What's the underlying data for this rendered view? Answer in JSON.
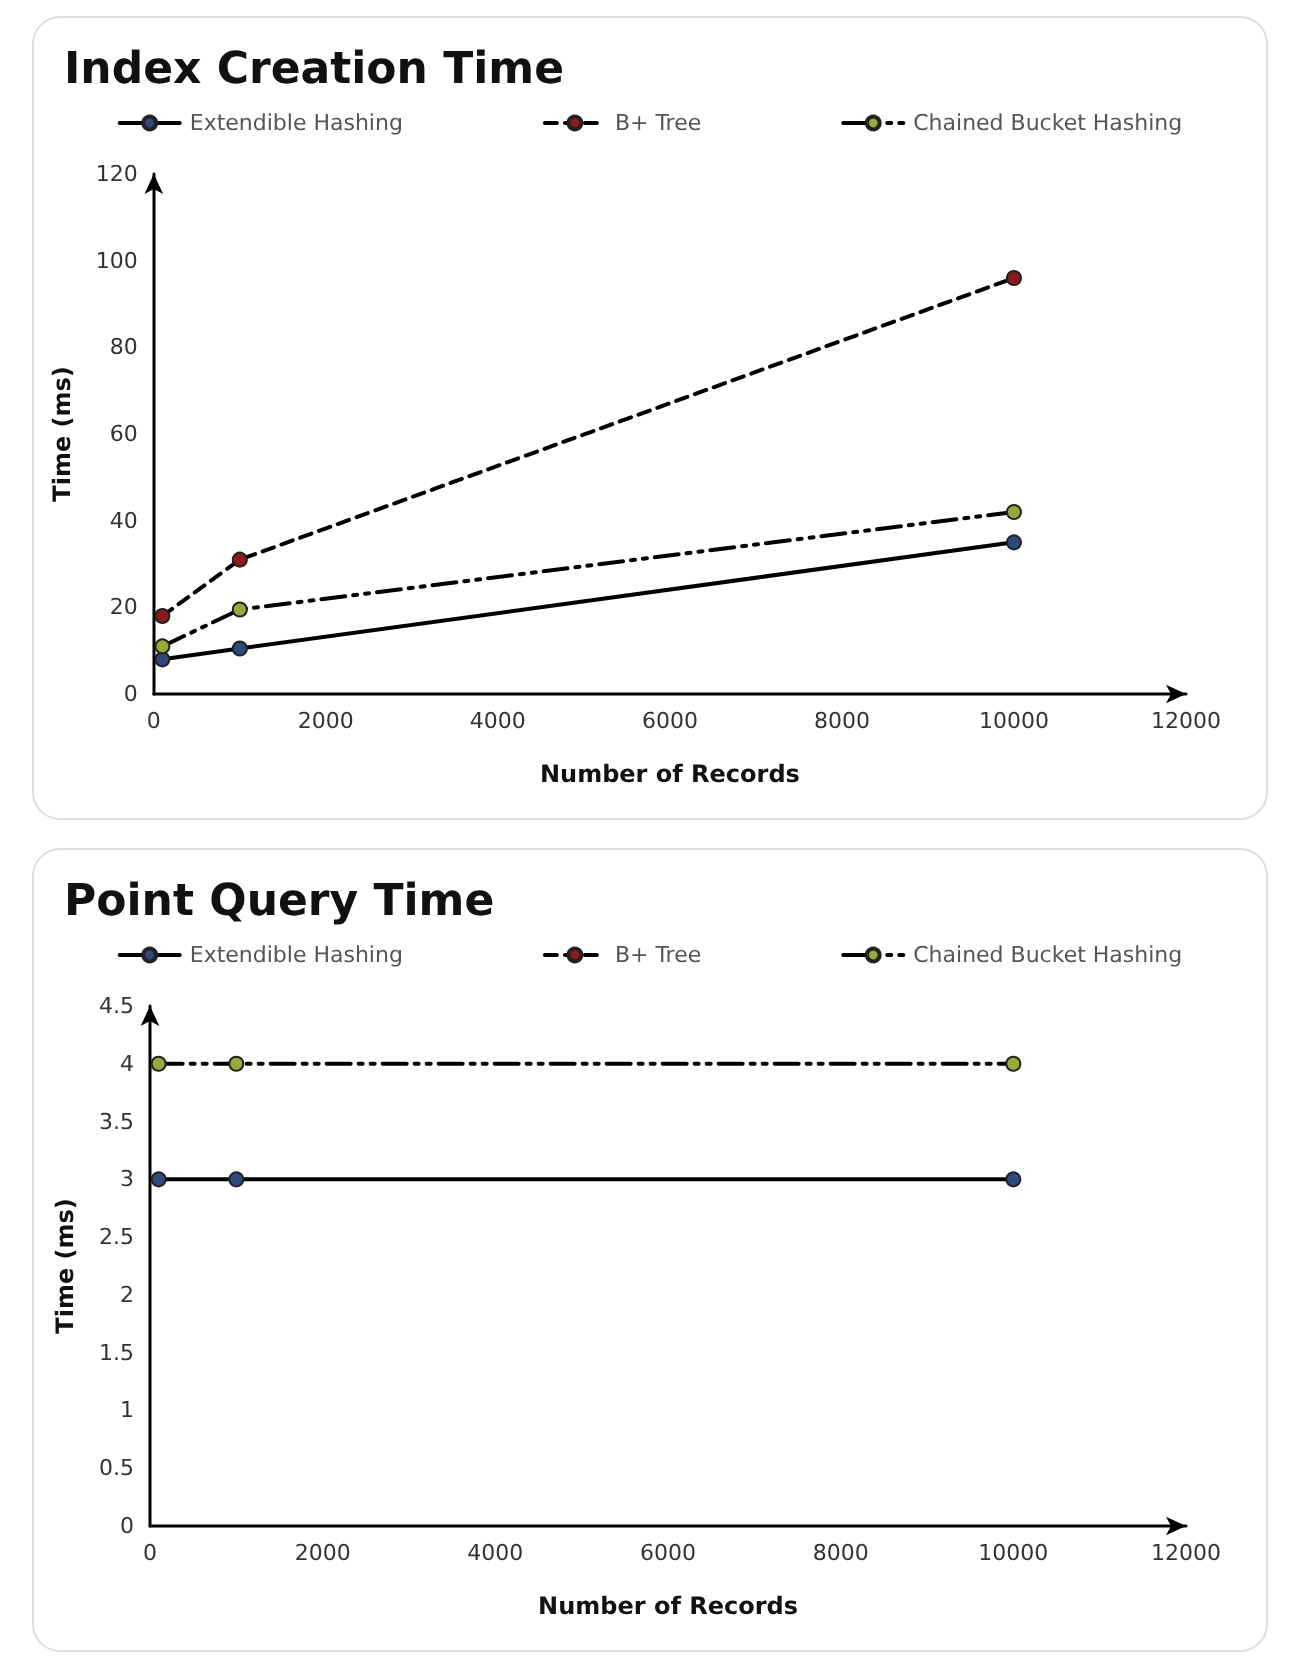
{
  "chart_data": [
    {
      "type": "line",
      "title": "Index Creation Time",
      "xlabel": "Number of Records",
      "ylabel": "Time (ms)",
      "x": [
        100,
        1000,
        10000
      ],
      "xlim": [
        0,
        12000
      ],
      "xticks": [
        0,
        2000,
        4000,
        6000,
        8000,
        10000,
        12000
      ],
      "ylim": [
        0,
        120
      ],
      "yticks": [
        0,
        20,
        40,
        60,
        80,
        100,
        120
      ],
      "grid": false,
      "legend": "top",
      "marker": "circle",
      "series": [
        {
          "name": "Extendible Hashing",
          "color": "#2e4a7d",
          "line_style": "solid",
          "values": [
            8,
            10.5,
            35
          ]
        },
        {
          "name": "B+ Tree",
          "color": "#8b1a1a",
          "line_style": "dashed",
          "values": [
            18,
            31,
            96
          ]
        },
        {
          "name": "Chained Bucket Hashing",
          "color": "#9aa83a",
          "line_style": "dotted",
          "values": [
            11,
            19.5,
            42
          ]
        }
      ]
    },
    {
      "type": "line",
      "title": "Point Query Time",
      "xlabel": "Number of Records",
      "ylabel": "Time (ms)",
      "x": [
        100,
        1000,
        10000
      ],
      "xlim": [
        0,
        12000
      ],
      "xticks": [
        0,
        2000,
        4000,
        6000,
        8000,
        10000,
        12000
      ],
      "ylim": [
        0,
        4.5
      ],
      "yticks": [
        0,
        0.5,
        1,
        1.5,
        2,
        2.5,
        3,
        3.5,
        4,
        4.5
      ],
      "grid": false,
      "legend": "top",
      "marker": "circle",
      "series": [
        {
          "name": "Extendible Hashing",
          "color": "#2e4a7d",
          "line_style": "solid",
          "values": [
            3,
            3,
            3
          ]
        },
        {
          "name": "B+ Tree",
          "color": "#8b1a1a",
          "line_style": "dashed",
          "values": [
            null,
            null,
            null
          ]
        },
        {
          "name": "Chained Bucket Hashing",
          "color": "#9aa83a",
          "line_style": "dotted",
          "values": [
            4,
            4,
            4
          ]
        }
      ]
    }
  ]
}
